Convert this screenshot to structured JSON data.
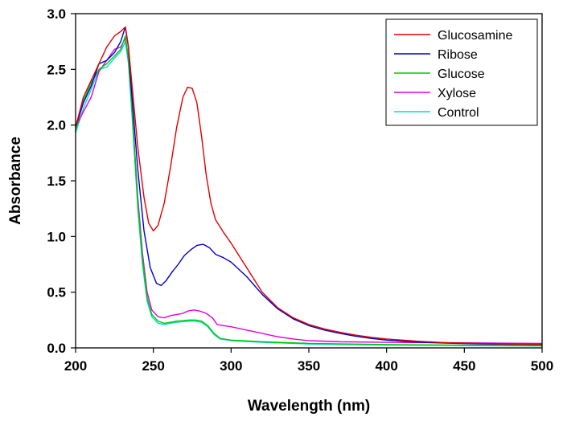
{
  "chart_data": {
    "type": "line",
    "title": "",
    "xlabel": "Wavelength (nm)",
    "ylabel": "Absorbance",
    "xlim": [
      200,
      500
    ],
    "ylim": [
      0.0,
      3.0
    ],
    "x_ticks": [
      200,
      250,
      300,
      350,
      400,
      450,
      500
    ],
    "x_tick_labels": [
      "200",
      "250",
      "300",
      "350",
      "400",
      "450",
      "500"
    ],
    "y_ticks": [
      0.0,
      0.5,
      1.0,
      1.5,
      2.0,
      2.5,
      3.0
    ],
    "y_tick_labels": [
      "0.0",
      "0.5",
      "1.0",
      "1.5",
      "2.0",
      "2.5",
      "3.0"
    ],
    "grid": false,
    "legend_position": "top-right",
    "series": [
      {
        "name": "Glucosamine",
        "color": "#e00000",
        "points": [
          [
            200,
            1.98
          ],
          [
            205,
            2.25
          ],
          [
            210,
            2.4
          ],
          [
            215,
            2.55
          ],
          [
            220,
            2.7
          ],
          [
            225,
            2.8
          ],
          [
            229,
            2.84
          ],
          [
            232,
            2.88
          ],
          [
            234,
            2.7
          ],
          [
            236,
            2.4
          ],
          [
            240,
            1.8
          ],
          [
            244,
            1.35
          ],
          [
            247,
            1.12
          ],
          [
            250,
            1.05
          ],
          [
            253,
            1.1
          ],
          [
            257,
            1.3
          ],
          [
            261,
            1.62
          ],
          [
            265,
            1.98
          ],
          [
            269,
            2.25
          ],
          [
            272,
            2.34
          ],
          [
            275,
            2.33
          ],
          [
            278,
            2.2
          ],
          [
            281,
            1.9
          ],
          [
            284,
            1.55
          ],
          [
            287,
            1.3
          ],
          [
            290,
            1.15
          ],
          [
            295,
            1.04
          ],
          [
            300,
            0.94
          ],
          [
            310,
            0.72
          ],
          [
            320,
            0.5
          ],
          [
            330,
            0.36
          ],
          [
            340,
            0.27
          ],
          [
            350,
            0.21
          ],
          [
            360,
            0.17
          ],
          [
            370,
            0.14
          ],
          [
            380,
            0.115
          ],
          [
            390,
            0.095
          ],
          [
            400,
            0.08
          ],
          [
            420,
            0.06
          ],
          [
            440,
            0.045
          ],
          [
            460,
            0.04
          ],
          [
            480,
            0.035
          ],
          [
            500,
            0.032
          ]
        ]
      },
      {
        "name": "Ribose",
        "color": "#0000d0",
        "points": [
          [
            200,
            1.98
          ],
          [
            205,
            2.2
          ],
          [
            210,
            2.35
          ],
          [
            215,
            2.55
          ],
          [
            220,
            2.58
          ],
          [
            225,
            2.65
          ],
          [
            229,
            2.75
          ],
          [
            232,
            2.88
          ],
          [
            234,
            2.7
          ],
          [
            236,
            2.3
          ],
          [
            240,
            1.6
          ],
          [
            244,
            1.05
          ],
          [
            248,
            0.72
          ],
          [
            252,
            0.58
          ],
          [
            255,
            0.56
          ],
          [
            258,
            0.6
          ],
          [
            262,
            0.68
          ],
          [
            266,
            0.75
          ],
          [
            270,
            0.83
          ],
          [
            274,
            0.88
          ],
          [
            278,
            0.92
          ],
          [
            282,
            0.93
          ],
          [
            286,
            0.9
          ],
          [
            290,
            0.84
          ],
          [
            295,
            0.81
          ],
          [
            300,
            0.77
          ],
          [
            310,
            0.64
          ],
          [
            320,
            0.48
          ],
          [
            330,
            0.35
          ],
          [
            340,
            0.26
          ],
          [
            350,
            0.2
          ],
          [
            360,
            0.16
          ],
          [
            370,
            0.13
          ],
          [
            380,
            0.105
          ],
          [
            390,
            0.085
          ],
          [
            400,
            0.07
          ],
          [
            420,
            0.052
          ],
          [
            440,
            0.042
          ],
          [
            460,
            0.036
          ],
          [
            480,
            0.032
          ],
          [
            500,
            0.03
          ]
        ]
      },
      {
        "name": "Glucose",
        "color": "#00c800",
        "points": [
          [
            200,
            1.95
          ],
          [
            205,
            2.22
          ],
          [
            210,
            2.38
          ],
          [
            215,
            2.5
          ],
          [
            220,
            2.55
          ],
          [
            225,
            2.62
          ],
          [
            229,
            2.68
          ],
          [
            232,
            2.8
          ],
          [
            234,
            2.6
          ],
          [
            236,
            2.2
          ],
          [
            240,
            1.3
          ],
          [
            243,
            0.8
          ],
          [
            246,
            0.45
          ],
          [
            249,
            0.3
          ],
          [
            253,
            0.24
          ],
          [
            257,
            0.22
          ],
          [
            261,
            0.23
          ],
          [
            265,
            0.24
          ],
          [
            269,
            0.245
          ],
          [
            273,
            0.25
          ],
          [
            277,
            0.25
          ],
          [
            281,
            0.24
          ],
          [
            285,
            0.2
          ],
          [
            289,
            0.13
          ],
          [
            293,
            0.085
          ],
          [
            300,
            0.07
          ],
          [
            320,
            0.055
          ],
          [
            350,
            0.04
          ],
          [
            400,
            0.03
          ],
          [
            450,
            0.025
          ],
          [
            500,
            0.02
          ]
        ]
      },
      {
        "name": "Xylose",
        "color": "#e000e0",
        "points": [
          [
            200,
            1.98
          ],
          [
            205,
            2.12
          ],
          [
            210,
            2.25
          ],
          [
            215,
            2.48
          ],
          [
            220,
            2.58
          ],
          [
            225,
            2.68
          ],
          [
            229,
            2.7
          ],
          [
            232,
            2.78
          ],
          [
            234,
            2.6
          ],
          [
            236,
            2.2
          ],
          [
            240,
            1.35
          ],
          [
            243,
            0.85
          ],
          [
            246,
            0.5
          ],
          [
            249,
            0.34
          ],
          [
            253,
            0.28
          ],
          [
            257,
            0.27
          ],
          [
            261,
            0.29
          ],
          [
            265,
            0.3
          ],
          [
            269,
            0.31
          ],
          [
            272,
            0.33
          ],
          [
            276,
            0.34
          ],
          [
            280,
            0.33
          ],
          [
            284,
            0.31
          ],
          [
            288,
            0.27
          ],
          [
            291,
            0.21
          ],
          [
            295,
            0.2
          ],
          [
            300,
            0.19
          ],
          [
            310,
            0.16
          ],
          [
            320,
            0.13
          ],
          [
            330,
            0.1
          ],
          [
            340,
            0.08
          ],
          [
            350,
            0.065
          ],
          [
            370,
            0.055
          ],
          [
            400,
            0.05
          ],
          [
            450,
            0.045
          ],
          [
            500,
            0.04
          ]
        ]
      },
      {
        "name": "Control",
        "color": "#00d8d8",
        "points": [
          [
            200,
            1.93
          ],
          [
            205,
            2.15
          ],
          [
            210,
            2.32
          ],
          [
            215,
            2.5
          ],
          [
            220,
            2.52
          ],
          [
            225,
            2.6
          ],
          [
            229,
            2.66
          ],
          [
            232,
            2.75
          ],
          [
            234,
            2.55
          ],
          [
            236,
            2.15
          ],
          [
            240,
            1.25
          ],
          [
            243,
            0.75
          ],
          [
            246,
            0.42
          ],
          [
            249,
            0.28
          ],
          [
            253,
            0.22
          ],
          [
            257,
            0.21
          ],
          [
            261,
            0.22
          ],
          [
            265,
            0.23
          ],
          [
            269,
            0.235
          ],
          [
            273,
            0.24
          ],
          [
            277,
            0.24
          ],
          [
            281,
            0.23
          ],
          [
            285,
            0.19
          ],
          [
            289,
            0.12
          ],
          [
            293,
            0.08
          ],
          [
            300,
            0.065
          ],
          [
            320,
            0.05
          ],
          [
            350,
            0.035
          ],
          [
            400,
            0.025
          ],
          [
            450,
            0.02
          ],
          [
            500,
            0.018
          ]
        ]
      }
    ]
  }
}
